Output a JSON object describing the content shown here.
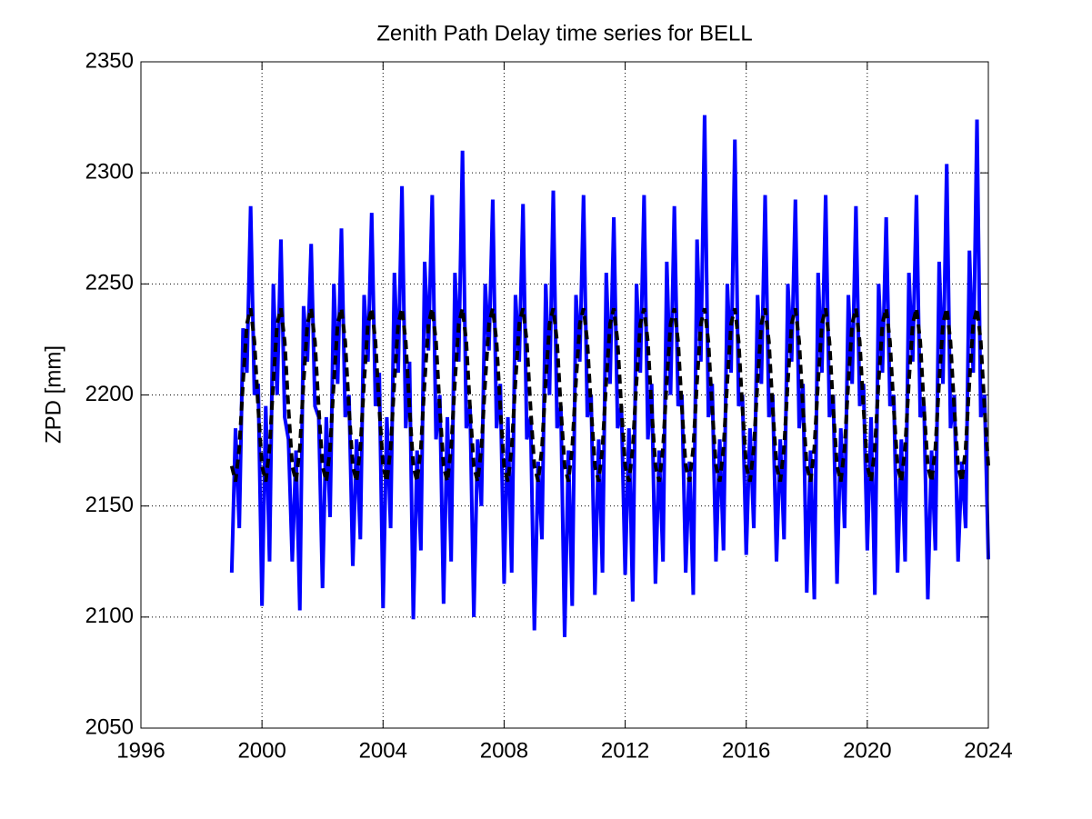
{
  "chart_data": {
    "type": "line",
    "title": "Zenith Path Delay time series for BELL",
    "y_label": "ZPD [mm]",
    "x": [
      1999,
      1999.125,
      1999.25,
      1999.375,
      1999.5,
      1999.625,
      1999.75,
      1999.875,
      2000,
      2000.125,
      2000.25,
      2000.375,
      2000.5,
      2000.625,
      2000.75,
      2000.875,
      2001,
      2001.125,
      2001.25,
      2001.375,
      2001.5,
      2001.625,
      2001.75,
      2001.875,
      2002,
      2002.125,
      2002.25,
      2002.375,
      2002.5,
      2002.625,
      2002.75,
      2002.875,
      2003,
      2003.125,
      2003.25,
      2003.375,
      2003.5,
      2003.625,
      2003.75,
      2003.875,
      2004,
      2004.125,
      2004.25,
      2004.375,
      2004.5,
      2004.625,
      2004.75,
      2004.875,
      2005,
      2005.125,
      2005.25,
      2005.375,
      2005.5,
      2005.625,
      2005.75,
      2005.875,
      2006,
      2006.125,
      2006.25,
      2006.375,
      2006.5,
      2006.625,
      2006.75,
      2006.875,
      2007,
      2007.125,
      2007.25,
      2007.375,
      2007.5,
      2007.625,
      2007.75,
      2007.875,
      2008,
      2008.125,
      2008.25,
      2008.375,
      2008.5,
      2008.625,
      2008.75,
      2008.875,
      2009,
      2009.125,
      2009.25,
      2009.375,
      2009.5,
      2009.625,
      2009.75,
      2009.875,
      2010,
      2010.125,
      2010.25,
      2010.375,
      2010.5,
      2010.625,
      2010.75,
      2010.875,
      2011,
      2011.125,
      2011.25,
      2011.375,
      2011.5,
      2011.625,
      2011.75,
      2011.875,
      2012,
      2012.125,
      2012.25,
      2012.375,
      2012.5,
      2012.625,
      2012.75,
      2012.875,
      2013,
      2013.125,
      2013.25,
      2013.375,
      2013.5,
      2013.625,
      2013.75,
      2013.875,
      2014,
      2014.125,
      2014.25,
      2014.375,
      2014.5,
      2014.625,
      2014.75,
      2014.875,
      2015,
      2015.125,
      2015.25,
      2015.375,
      2015.5,
      2015.625,
      2015.75,
      2015.875,
      2016,
      2016.125,
      2016.25,
      2016.375,
      2016.5,
      2016.625,
      2016.75,
      2016.875,
      2017,
      2017.125,
      2017.25,
      2017.375,
      2017.5,
      2017.625,
      2017.75,
      2017.875,
      2018,
      2018.125,
      2018.25,
      2018.375,
      2018.5,
      2018.625,
      2018.75,
      2018.875,
      2019,
      2019.125,
      2019.25,
      2019.375,
      2019.5,
      2019.625,
      2019.75,
      2019.875,
      2020,
      2020.125,
      2020.25,
      2020.375,
      2020.5,
      2020.625,
      2020.75,
      2020.875,
      2021,
      2021.125,
      2021.25,
      2021.375,
      2021.5,
      2021.625,
      2021.75,
      2021.875,
      2022,
      2022.125,
      2022.25,
      2022.375,
      2022.5,
      2022.625,
      2022.75,
      2022.875,
      2023,
      2023.125,
      2023.25,
      2023.375,
      2023.5,
      2023.625,
      2023.75,
      2023.875,
      2024
    ],
    "series": [
      {
        "color": "#0000ff",
        "dash": false,
        "values": [
          2120,
          2185,
          2140,
          2230,
          2210,
          2285,
          2200,
          2205,
          2105,
          2195,
          2125,
          2250,
          2200,
          2270,
          2190,
          2180,
          2125,
          2175,
          2103,
          2240,
          2215,
          2268,
          2195,
          2190,
          2113,
          2190,
          2145,
          2250,
          2205,
          2275,
          2190,
          2200,
          2123,
          2180,
          2135,
          2245,
          2215,
          2282,
          2195,
          2210,
          2104,
          2190,
          2140,
          2255,
          2210,
          2294,
          2185,
          2215,
          2099,
          2175,
          2130,
          2260,
          2220,
          2290,
          2180,
          2200,
          2106,
          2190,
          2125,
          2255,
          2215,
          2310,
          2185,
          2195,
          2100,
          2180,
          2150,
          2250,
          2220,
          2288,
          2185,
          2205,
          2115,
          2190,
          2120,
          2245,
          2215,
          2286,
          2180,
          2190,
          2094,
          2170,
          2135,
          2250,
          2200,
          2292,
          2185,
          2195,
          2091,
          2175,
          2105,
          2245,
          2215,
          2290,
          2190,
          2200,
          2110,
          2180,
          2120,
          2255,
          2205,
          2280,
          2185,
          2195,
          2119,
          2185,
          2107,
          2250,
          2210,
          2290,
          2180,
          2205,
          2115,
          2175,
          2125,
          2260,
          2200,
          2285,
          2195,
          2200,
          2120,
          2170,
          2110,
          2270,
          2215,
          2326,
          2190,
          2205,
          2125,
          2180,
          2130,
          2250,
          2210,
          2315,
          2195,
          2200,
          2128,
          2185,
          2140,
          2245,
          2205,
          2290,
          2190,
          2200,
          2125,
          2180,
          2135,
          2250,
          2215,
          2288,
          2185,
          2205,
          2111,
          2175,
          2108,
          2255,
          2210,
          2290,
          2190,
          2200,
          2115,
          2185,
          2140,
          2245,
          2205,
          2285,
          2195,
          2205,
          2130,
          2190,
          2110,
          2250,
          2210,
          2280,
          2195,
          2200,
          2120,
          2180,
          2125,
          2255,
          2215,
          2290,
          2190,
          2195,
          2108,
          2175,
          2130,
          2260,
          2205,
          2304,
          2185,
          2200,
          2125,
          2170,
          2140,
          2265,
          2210,
          2324,
          2190,
          2200,
          2126
        ]
      },
      {
        "color": "#000000",
        "dash": true,
        "values": [
          2168,
          2161,
          2176,
          2206,
          2232,
          2239,
          2224,
          2194,
          2168,
          2161,
          2176,
          2206,
          2232,
          2239,
          2224,
          2194,
          2168,
          2161,
          2176,
          2206,
          2232,
          2239,
          2224,
          2194,
          2168,
          2161,
          2176,
          2206,
          2232,
          2239,
          2224,
          2194,
          2168,
          2161,
          2176,
          2206,
          2232,
          2239,
          2224,
          2194,
          2168,
          2161,
          2176,
          2206,
          2232,
          2239,
          2224,
          2194,
          2168,
          2161,
          2176,
          2206,
          2232,
          2239,
          2224,
          2194,
          2168,
          2161,
          2176,
          2206,
          2232,
          2239,
          2224,
          2194,
          2168,
          2161,
          2176,
          2206,
          2232,
          2239,
          2224,
          2194,
          2168,
          2161,
          2176,
          2206,
          2232,
          2239,
          2224,
          2194,
          2168,
          2161,
          2176,
          2206,
          2232,
          2239,
          2224,
          2194,
          2168,
          2161,
          2176,
          2206,
          2232,
          2239,
          2224,
          2194,
          2168,
          2161,
          2176,
          2206,
          2232,
          2239,
          2224,
          2194,
          2168,
          2161,
          2176,
          2206,
          2232,
          2239,
          2224,
          2194,
          2168,
          2161,
          2176,
          2206,
          2232,
          2239,
          2224,
          2194,
          2168,
          2161,
          2176,
          2206,
          2232,
          2239,
          2224,
          2194,
          2168,
          2161,
          2176,
          2206,
          2232,
          2239,
          2224,
          2194,
          2168,
          2161,
          2176,
          2206,
          2232,
          2239,
          2224,
          2194,
          2168,
          2161,
          2176,
          2206,
          2232,
          2239,
          2224,
          2194,
          2168,
          2161,
          2176,
          2206,
          2232,
          2239,
          2224,
          2194,
          2168,
          2161,
          2176,
          2206,
          2232,
          2239,
          2224,
          2194,
          2168,
          2161,
          2176,
          2206,
          2232,
          2239,
          2224,
          2194,
          2168,
          2161,
          2176,
          2206,
          2232,
          2239,
          2224,
          2194,
          2168,
          2161,
          2176,
          2206,
          2232,
          2239,
          2224,
          2194,
          2168,
          2161,
          2176,
          2206,
          2232,
          2239,
          2224,
          2194,
          2168
        ]
      }
    ],
    "xlim": [
      1996,
      2024
    ],
    "xticks": [
      1996,
      2000,
      2004,
      2008,
      2012,
      2016,
      2020,
      2024
    ],
    "ylim": [
      2050,
      2350
    ],
    "yticks": [
      2050,
      2100,
      2150,
      2200,
      2250,
      2300,
      2350
    ],
    "grid": true
  }
}
